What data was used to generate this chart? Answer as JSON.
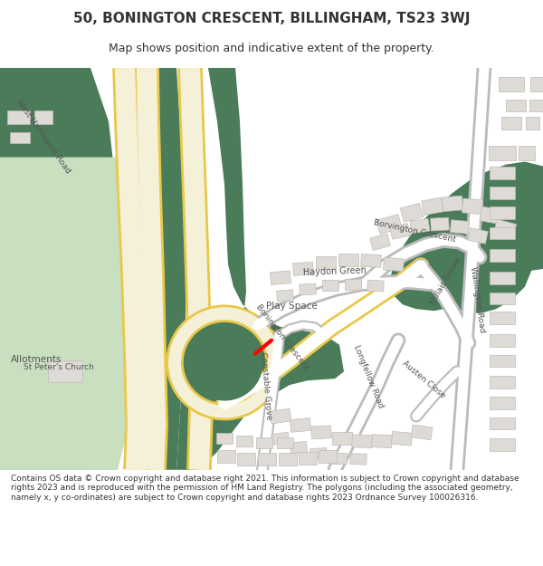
{
  "title": "50, BONINGTON CRESCENT, BILLINGHAM, TS23 3WJ",
  "subtitle": "Map shows position and indicative extent of the property.",
  "footer": "Contains OS data © Crown copyright and database right 2021. This information is subject to Crown copyright and database rights 2023 and is reproduced with the permission of HM Land Registry. The polygons (including the associated geometry, namely x, y co-ordinates) are subject to Crown copyright and database rights 2023 Ordnance Survey 100026316.",
  "bg_color": "#ffffff",
  "map_bg": "#f0ede8",
  "green_dark": "#4a7c59",
  "green_light": "#c8dfc0",
  "road_main": "#f5f0d8",
  "road_border": "#e8c84a",
  "road_white": "#ffffff",
  "building_color": "#dedad5",
  "building_border": "#c0bcb8"
}
